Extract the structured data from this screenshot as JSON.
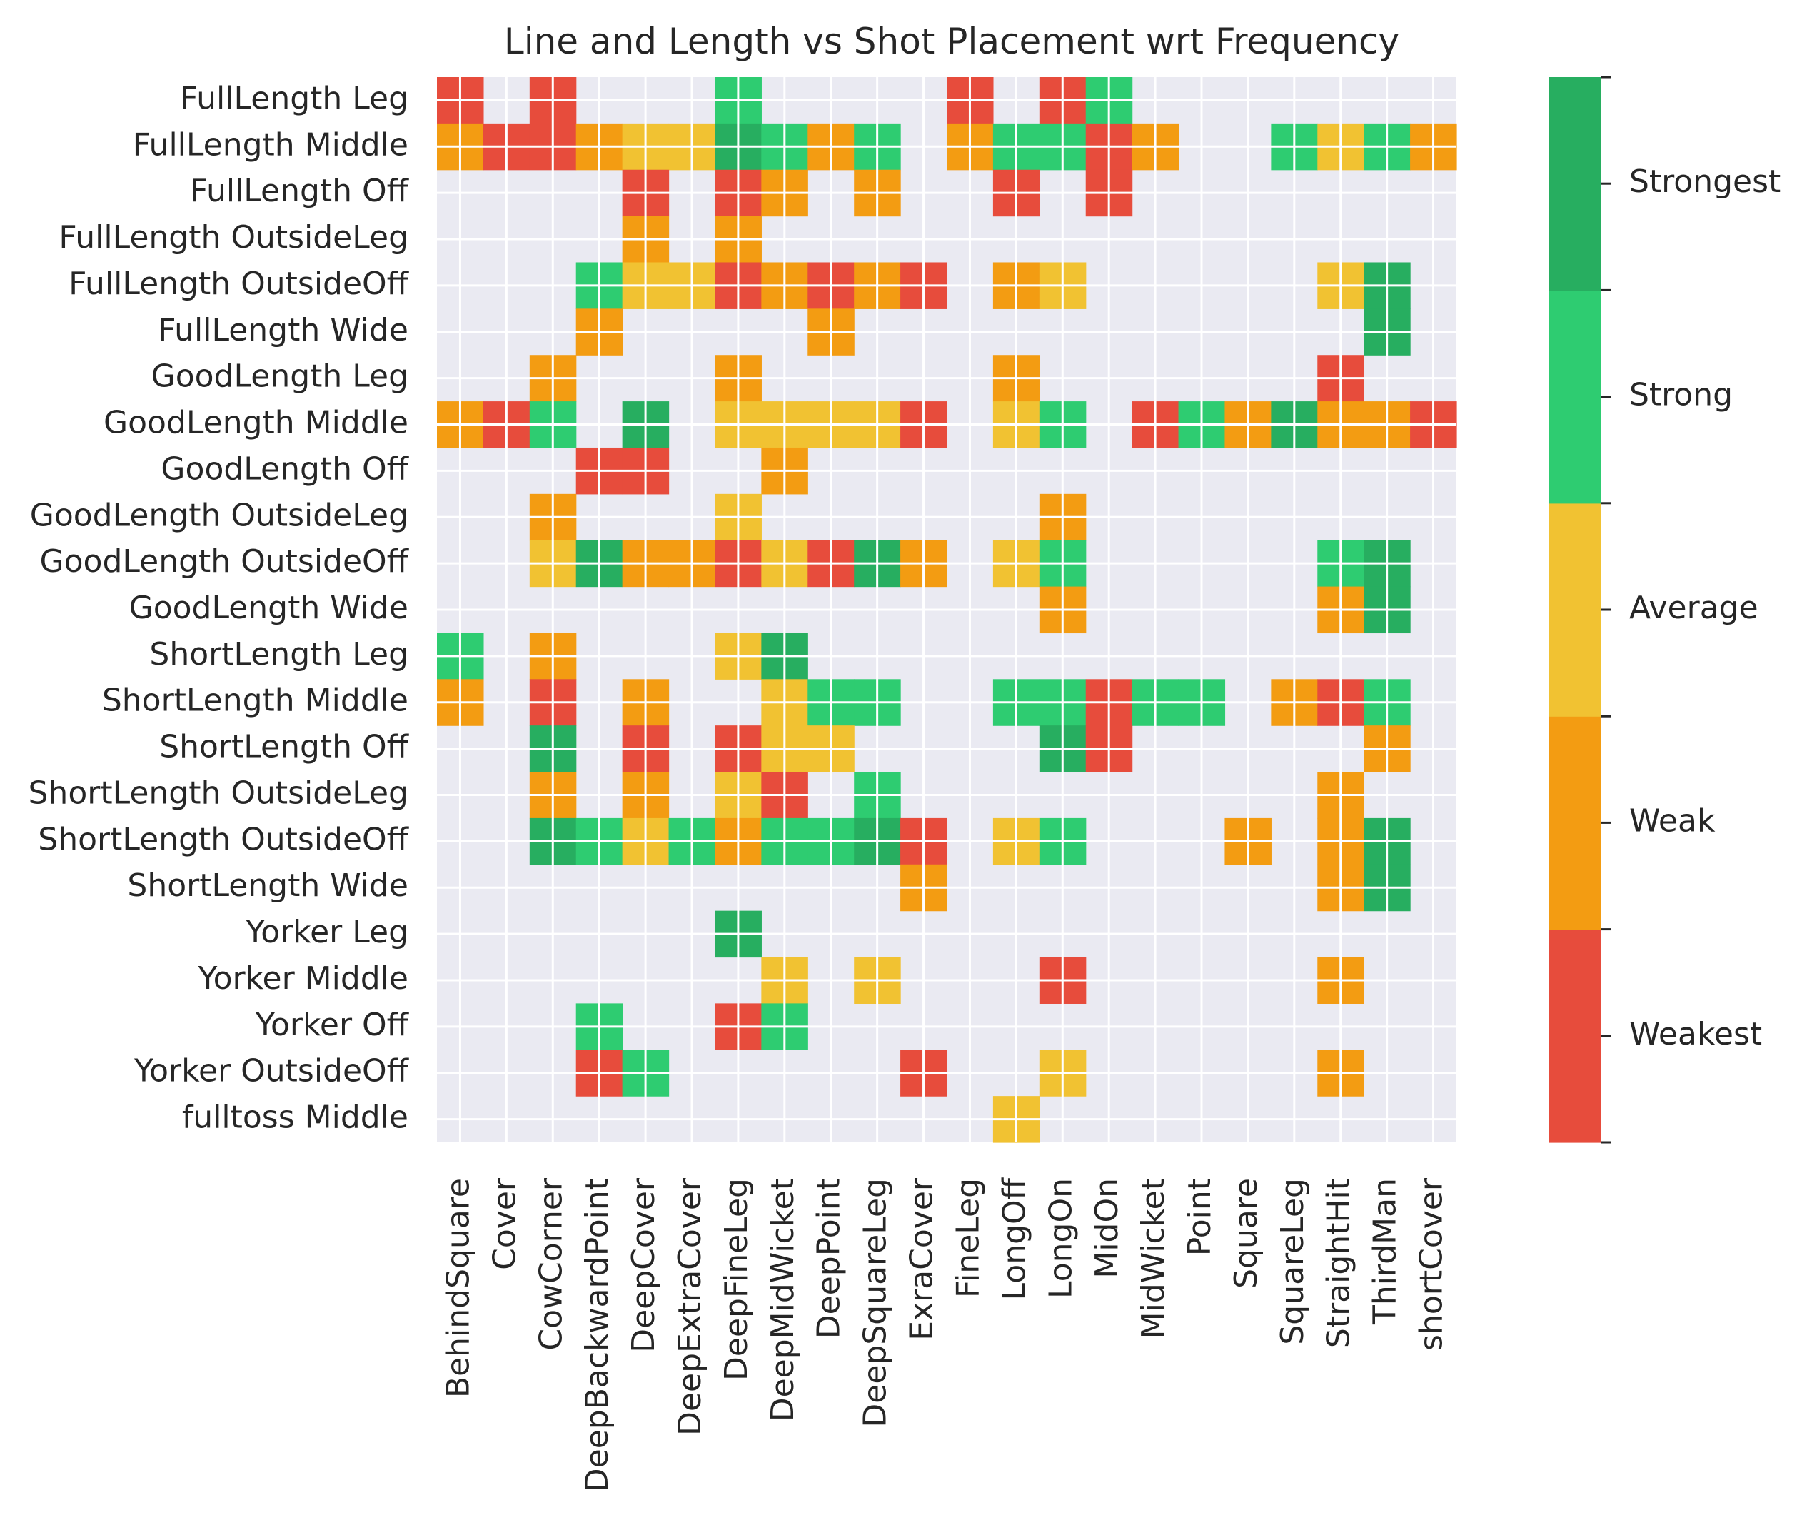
{
  "chart_data": {
    "type": "heatmap",
    "title": "Line and Length vs Shot Placement wrt Frequency",
    "xlabel": "",
    "ylabel": "",
    "grid": true,
    "x_categories": [
      "BehindSquare",
      "Cover",
      "CowCorner",
      "DeepBackwardPoint",
      "DeepCover",
      "DeepExtraCover",
      "DeepFineLeg",
      "DeepMidWicket",
      "DeepPoint",
      "DeepSquareLeg",
      "ExraCover",
      "FineLeg",
      "LongOff",
      "LongOn",
      "MidOn",
      "MidWicket",
      "Point",
      "Square",
      "SquareLeg",
      "StraightHit",
      "ThirdMan",
      "shortCover"
    ],
    "y_categories": [
      "FullLength Leg",
      "FullLength Middle",
      "FullLength Off",
      "FullLength OutsideLeg",
      "FullLength OutsideOff",
      "FullLength Wide",
      "GoodLength Leg",
      "GoodLength Middle",
      "GoodLength Off",
      "GoodLength OutsideLeg",
      "GoodLength OutsideOff",
      "GoodLength Wide",
      "ShortLength Leg",
      "ShortLength Middle",
      "ShortLength Off",
      "ShortLength OutsideLeg",
      "ShortLength OutsideOff",
      "ShortLength Wide",
      "Yorker Leg",
      "Yorker Middle",
      "Yorker Off",
      "Yorker OutsideOff",
      "fulltoss Middle"
    ],
    "scale": {
      "min": 0,
      "max": 5,
      "labels": [
        "Weakest",
        "Weak",
        "Average",
        "Strong",
        "Strongest"
      ],
      "colors": [
        "#e74c3c",
        "#f39c12",
        "#f1c232",
        "#2ecc71",
        "#27ae60"
      ],
      "label_positions": [
        0.5,
        1.5,
        2.5,
        3.5,
        4.5
      ]
    },
    "rows": [
      "1 . 1 . . . 4 . . . . 1 . 1 4 . . . . . . .",
      "2 1 1 2 3 3 5 4 2 4 . 2 4 4 1 2 . . 4 3 4 2",
      ". . . . 1 . 1 2 . 2 . . 1 . 1 . . . . . . .",
      ". . . . 2 . 2 . . . . . . . . . . . . . . .",
      ". . . 4 3 3 1 2 1 2 1 . 2 3 . . . . . 3 5 .",
      ". . . 2 . . . . 2 . . . . . . . . . . . 5 .",
      ". . 2 . . . 2 . . . . . 2 . . . . . . 1 . .",
      "2 1 4 . 5 . 3 3 3 3 1 . 3 4 . 1 4 2 5 2 2 1",
      ". . . 1 1 . . 2 . . . . . . . . . . . . . .",
      ". . 2 . . . 3 . . . . . . 2 . . . . . . . .",
      ". . 3 5 2 2 1 3 1 5 2 . 3 4 . . . . . 4 5 .",
      ". . . . . . . . . . . . . 2 . . . . . 2 5 .",
      "4 . 2 . . . 3 5 . . . . . . . . . . . . . .",
      "2 . 1 . 2 . . 3 4 4 . . 4 4 1 4 4 . 2 1 4 .",
      ". . 5 . 1 . 1 3 3 . . . . 5 1 . . . . . 2 .",
      ". . 2 . 2 . 3 1 . 4 . . . . . . . . . 2 . .",
      ". . 5 4 3 4 2 4 4 5 1 . 3 4 . . . 2 . 2 5 .",
      ". . . . . . . . . . 2 . . . . . . . . 2 5 .",
      ". . . . . . 5 . . . . . . . . . . . . . . .",
      ". . . . . . . 3 . 3 . . . 1 . . . . . 2 . .",
      ". . . 4 . . 1 4 . . . . . . . . . . . . . .",
      ". . . 1 4 . . . . . 1 . . 3 . . . . . 2 . .",
      ". . . . . . . . . . . . 3 . . . . . . . . ."
    ]
  }
}
